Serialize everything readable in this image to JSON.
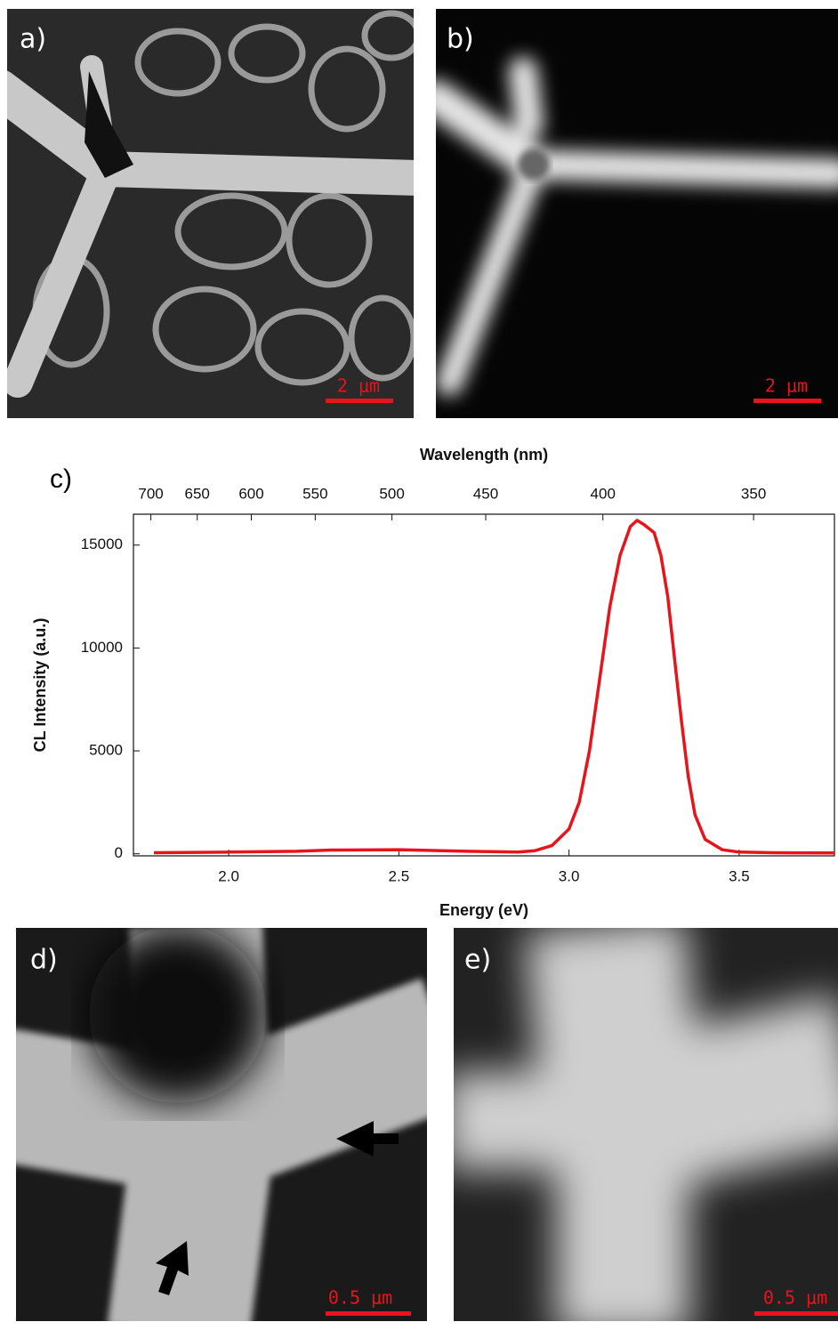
{
  "panels": [
    {
      "label": "a)",
      "scale_bar": "2 μm"
    },
    {
      "label": "b)",
      "scale_bar": "2 μm"
    },
    {
      "label": "d)",
      "scale_bar": "0.5 μm"
    },
    {
      "label": "e)",
      "scale_bar": "0.5 μm"
    }
  ],
  "chart_data": {
    "type": "line",
    "panel_label": "c)",
    "x_label": "Energy (eV)",
    "x2_label": "Wavelength (nm)",
    "y_label": "CL Intensity (a.u.)",
    "x": [
      1.78,
      2.0,
      2.2,
      2.3,
      2.5,
      2.7,
      2.85,
      2.9,
      2.95,
      3.0,
      3.03,
      3.06,
      3.09,
      3.12,
      3.15,
      3.18,
      3.2,
      3.22,
      3.25,
      3.27,
      3.29,
      3.31,
      3.33,
      3.35,
      3.37,
      3.4,
      3.45,
      3.5,
      3.6,
      3.78
    ],
    "values": [
      50,
      80,
      120,
      180,
      200,
      120,
      80,
      150,
      400,
      1200,
      2500,
      5000,
      8500,
      12000,
      14500,
      15900,
      16200,
      16000,
      15600,
      14500,
      12500,
      9500,
      6500,
      3800,
      1900,
      700,
      200,
      80,
      50,
      40
    ],
    "color": "#e8141c",
    "xlim": [
      1.72,
      3.78
    ],
    "ylim": [
      -100,
      16500
    ],
    "xticks": [
      {
        "value": 2,
        "label": "2.0"
      },
      2.5,
      {
        "value": 3,
        "label": "3.0"
      },
      3.5
    ],
    "x2ticks": [
      700,
      650,
      600,
      550,
      500,
      450,
      400,
      350
    ],
    "yticks": [
      0,
      5000,
      10000,
      15000
    ],
    "grid": false
  }
}
